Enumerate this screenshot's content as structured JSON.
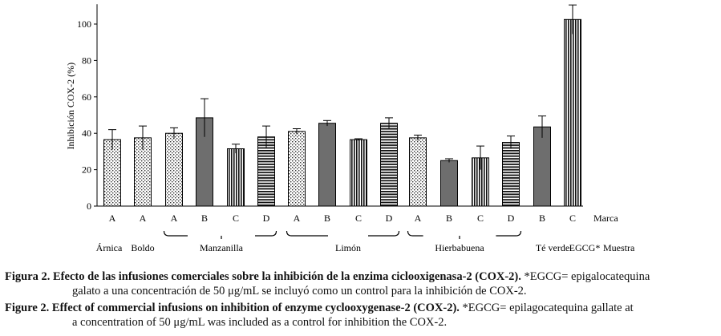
{
  "chart_data": {
    "type": "bar",
    "ylabel": "Inhibición COX-2 (%)",
    "ylim": [
      0,
      110
    ],
    "yticks": [
      0,
      20,
      40,
      60,
      80,
      100
    ],
    "grid": false,
    "bars": [
      {
        "brand": "A",
        "value": 36.5,
        "error": 5.5,
        "pattern": "dots"
      },
      {
        "brand": "A",
        "value": 37.5,
        "error": 6.5,
        "pattern": "dots"
      },
      {
        "brand": "A",
        "value": 40.0,
        "error": 3.0,
        "pattern": "dots"
      },
      {
        "brand": "B",
        "value": 48.5,
        "error": 10.5,
        "pattern": "solid"
      },
      {
        "brand": "C",
        "value": 31.5,
        "error": 2.5,
        "pattern": "vstripes"
      },
      {
        "brand": "D",
        "value": 38.0,
        "error": 6.0,
        "pattern": "hstripes"
      },
      {
        "brand": "A",
        "value": 41.0,
        "error": 1.5,
        "pattern": "dots"
      },
      {
        "brand": "B",
        "value": 45.5,
        "error": 1.5,
        "pattern": "solid"
      },
      {
        "brand": "C",
        "value": 36.5,
        "error": 0.5,
        "pattern": "vstripes"
      },
      {
        "brand": "D",
        "value": 45.5,
        "error": 3.0,
        "pattern": "hstripes"
      },
      {
        "brand": "A",
        "value": 37.5,
        "error": 1.5,
        "pattern": "dots"
      },
      {
        "brand": "B",
        "value": 25.0,
        "error": 1.0,
        "pattern": "solid"
      },
      {
        "brand": "C",
        "value": 26.5,
        "error": 6.5,
        "pattern": "vstripes"
      },
      {
        "brand": "D",
        "value": 35.0,
        "error": 3.5,
        "pattern": "hstripes"
      },
      {
        "brand": "B",
        "value": 43.5,
        "error": 6.0,
        "pattern": "solid"
      },
      {
        "brand": "C",
        "value": 102.5,
        "error": 8.0,
        "pattern": "vstripes"
      }
    ],
    "brand_axis_label": "Marca",
    "groups": [
      {
        "label": "Árnica",
        "bars": [
          0,
          0
        ],
        "bracket": false
      },
      {
        "label": "Boldo",
        "bars": [
          1,
          1
        ],
        "bracket": false
      },
      {
        "label": "Manzanilla",
        "bars": [
          2,
          5
        ],
        "bracket": true
      },
      {
        "label": "Limón",
        "bars": [
          6,
          9
        ],
        "bracket": true
      },
      {
        "label": "Hierbabuena",
        "bars": [
          10,
          13
        ],
        "bracket": true
      },
      {
        "label": "Té verde",
        "bars": [
          14,
          14
        ],
        "bracket": false
      },
      {
        "label": "EGCG*",
        "bars": [
          15,
          15
        ],
        "bracket": false
      }
    ],
    "sample_axis_label": "Muestra",
    "colors": {
      "bar_solid": "#6e6e6e",
      "stroke": "#000000"
    }
  },
  "caption_es": {
    "lead": "Figura 2. Efecto de las infusiones comerciales sobre la inhibición de la enzima ciclooxigenasa-2 (COX-2).",
    "rest1": " *EGCG= epigalocatequina",
    "rest2": "galato a una concentración de 50 μg/mL se incluyó como un control para la inhibición de COX-2."
  },
  "caption_en": {
    "lead": "Figure 2. Effect of commercial infusions on inhibition of enzyme cyclooxygenase-2 (COX-2).",
    "rest1": " *EGCG= epilagocatequina gallate at",
    "rest2": "a concentration of 50 μg/mL was included as a control for inhibition the COX-2."
  }
}
